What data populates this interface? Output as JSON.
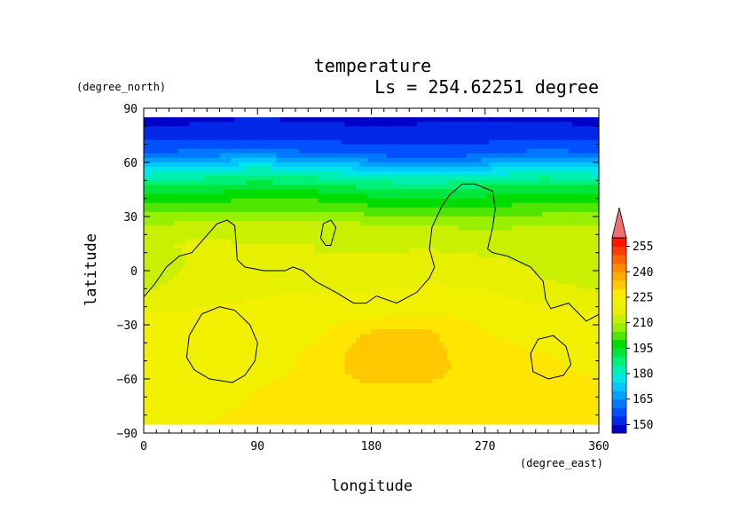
{
  "chart_data": {
    "type": "heatmap",
    "title": "temperature",
    "subtitle": "Ls = 254.62251 degree",
    "xlabel": "longitude",
    "ylabel": "latitude",
    "x_units": "(degree_east)",
    "y_units": "(degree_north)",
    "xlim": [
      0,
      360
    ],
    "ylim": [
      -90,
      90
    ],
    "x_ticks": [
      0,
      90,
      180,
      270,
      360
    ],
    "y_ticks": [
      90,
      60,
      30,
      0,
      -30,
      -60,
      -90
    ],
    "y_tick_labels": [
      "90",
      "60",
      "30",
      "0",
      "−30",
      "−60",
      "−90"
    ],
    "colorbar": {
      "levels": [
        145,
        150,
        155,
        160,
        165,
        170,
        175,
        180,
        185,
        190,
        195,
        200,
        205,
        210,
        215,
        220,
        225,
        230,
        235,
        240,
        245,
        250,
        255,
        260
      ],
      "colors": [
        "#0000c8",
        "#0028e6",
        "#0050ff",
        "#0078ff",
        "#00a0ff",
        "#00c8ff",
        "#00e6e6",
        "#00f0b4",
        "#00f078",
        "#00e63c",
        "#00dc00",
        "#50e600",
        "#96f000",
        "#c8f000",
        "#e6f000",
        "#f0f000",
        "#ffe600",
        "#ffc800",
        "#ffaa00",
        "#ff8c00",
        "#ff6400",
        "#ff3c00",
        "#ff1400"
      ],
      "tick_values": [
        150,
        165,
        180,
        195,
        210,
        225,
        240,
        255
      ],
      "tick_labels": [
        "150",
        "165",
        "180",
        "195",
        "210",
        "225",
        "240",
        "255"
      ]
    },
    "grid_lon": [
      0,
      45,
      90,
      135,
      180,
      225,
      270,
      315,
      360
    ],
    "grid_lat": [
      85,
      75,
      65,
      55,
      45,
      35,
      25,
      15,
      5,
      -5,
      -15,
      -25,
      -35,
      -45,
      -55,
      -65,
      -75,
      -85
    ],
    "values": [
      [
        148,
        149,
        150,
        149,
        148,
        149,
        149,
        149,
        148
      ],
      [
        152,
        152,
        153,
        153,
        152,
        152,
        153,
        153,
        152
      ],
      [
        160,
        162,
        164,
        160,
        158,
        157,
        158,
        162,
        160
      ],
      [
        178,
        180,
        183,
        180,
        176,
        175,
        177,
        180,
        178
      ],
      [
        192,
        193,
        195,
        194,
        191,
        190,
        192,
        194,
        192
      ],
      [
        202,
        203,
        204,
        204,
        201,
        200,
        200,
        202,
        202
      ],
      [
        210,
        212,
        211,
        212,
        211,
        210,
        209,
        210,
        210
      ],
      [
        214,
        216,
        215,
        215,
        214,
        214,
        213,
        214,
        214
      ],
      [
        212,
        216,
        216,
        215,
        216,
        217,
        216,
        214,
        212
      ],
      [
        213,
        217,
        218,
        217,
        218,
        219,
        219,
        215,
        213
      ],
      [
        216,
        219,
        220,
        221,
        221,
        222,
        221,
        219,
        216
      ],
      [
        221,
        221,
        222,
        223,
        224,
        225,
        224,
        222,
        221
      ],
      [
        223,
        222,
        222,
        224,
        231,
        231,
        225,
        224,
        224
      ],
      [
        222,
        221,
        222,
        226,
        233,
        232,
        226,
        225,
        224
      ],
      [
        222,
        221,
        222,
        227,
        233,
        232,
        227,
        226,
        224
      ],
      [
        223,
        222,
        225,
        228,
        229,
        229,
        228,
        227,
        226
      ],
      [
        224,
        223,
        226,
        227,
        227,
        227,
        227,
        227,
        227
      ],
      [
        225,
        225,
        227,
        227,
        227,
        227,
        227,
        227,
        227
      ]
    ],
    "contours": [
      [
        [
          -3,
          -17
        ],
        [
          8,
          -8
        ],
        [
          18,
          2
        ],
        [
          28,
          8
        ],
        [
          38,
          10
        ],
        [
          48,
          18
        ],
        [
          58,
          26
        ],
        [
          66,
          28
        ],
        [
          72,
          25
        ],
        [
          73,
          16
        ],
        [
          74,
          6
        ],
        [
          80,
          2
        ],
        [
          95,
          0
        ],
        [
          112,
          0
        ],
        [
          118,
          2
        ],
        [
          126,
          0
        ],
        [
          136,
          -6
        ],
        [
          152,
          -12
        ],
        [
          166,
          -18
        ],
        [
          176,
          -18
        ],
        [
          184,
          -14
        ],
        [
          200,
          -18
        ],
        [
          216,
          -12
        ],
        [
          226,
          -4
        ],
        [
          230,
          2
        ],
        [
          226,
          12
        ],
        [
          228,
          24
        ],
        [
          236,
          36
        ],
        [
          242,
          42
        ],
        [
          252,
          48
        ],
        [
          262,
          48
        ],
        [
          276,
          44
        ],
        [
          278,
          34
        ],
        [
          276,
          24
        ],
        [
          272,
          12
        ],
        [
          276,
          10
        ],
        [
          288,
          8
        ],
        [
          306,
          2
        ],
        [
          316,
          -6
        ],
        [
          318,
          -16
        ],
        [
          322,
          -21
        ],
        [
          336,
          -18
        ],
        [
          350,
          -28
        ],
        [
          363,
          -23
        ]
      ],
      [
        [
          34,
          -48
        ],
        [
          36,
          -36
        ],
        [
          46,
          -24
        ],
        [
          60,
          -20
        ],
        [
          72,
          -22
        ],
        [
          84,
          -30
        ],
        [
          90,
          -40
        ],
        [
          88,
          -50
        ],
        [
          80,
          -58
        ],
        [
          70,
          -62
        ],
        [
          52,
          -60
        ],
        [
          40,
          -55
        ],
        [
          34,
          -48
        ]
      ],
      [
        [
          338,
          -52
        ],
        [
          334,
          -42
        ],
        [
          324,
          -36
        ],
        [
          312,
          -38
        ],
        [
          306,
          -46
        ],
        [
          308,
          -56
        ],
        [
          320,
          -60
        ],
        [
          332,
          -58
        ],
        [
          338,
          -52
        ]
      ],
      [
        [
          142,
          26
        ],
        [
          148,
          28
        ],
        [
          152,
          24
        ],
        [
          148,
          14
        ],
        [
          144,
          14
        ],
        [
          140,
          18
        ],
        [
          142,
          26
        ]
      ]
    ]
  }
}
